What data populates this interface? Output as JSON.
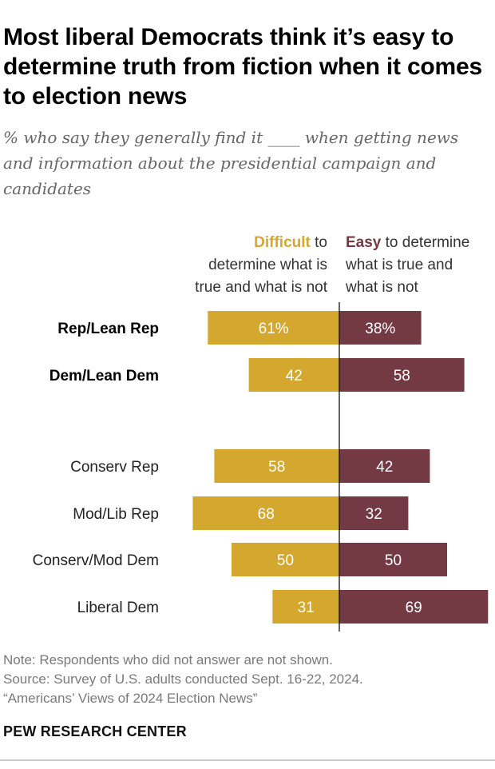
{
  "title": "Most liberal Democrats think it’s easy to determine truth from fiction when it comes to election news",
  "subtitle": "% who say they generally find it ____ when getting news and information about the presidential campaign and candidates",
  "chart_data": {
    "type": "bar",
    "orientation": "diverging-horizontal",
    "legend": {
      "difficult": {
        "keyword": "Difficult",
        "lines": [
          " to",
          "determine what is",
          "true and what is not"
        ]
      },
      "easy": {
        "keyword": "Easy",
        "lines": [
          " to determine",
          "what is true and",
          "what is not"
        ]
      }
    },
    "categories": [
      "Rep/Lean Rep",
      "Dem/Lean Dem",
      "Conserv Rep",
      "Mod/Lib Rep",
      "Conserv/Mod Dem",
      "Liberal Dem"
    ],
    "category_bold": [
      true,
      true,
      false,
      false,
      false,
      false
    ],
    "series": [
      {
        "name": "Difficult",
        "color": "#d4a82e",
        "values": [
          61,
          42,
          58,
          68,
          50,
          31
        ],
        "labels": [
          "61%",
          "42",
          "58",
          "68",
          "50",
          "31"
        ]
      },
      {
        "name": "Easy",
        "color": "#733a44",
        "values": [
          38,
          58,
          42,
          32,
          50,
          69
        ],
        "labels": [
          "38%",
          "58",
          "42",
          "32",
          "50",
          "69"
        ]
      }
    ]
  },
  "notes": {
    "note": "Note: Respondents who did not answer are not shown.",
    "source": "Source: Survey of U.S. adults conducted Sept. 16-22, 2024.",
    "report": "“Americans’ Views of 2024 Election News”"
  },
  "brand": "PEW RESEARCH CENTER"
}
